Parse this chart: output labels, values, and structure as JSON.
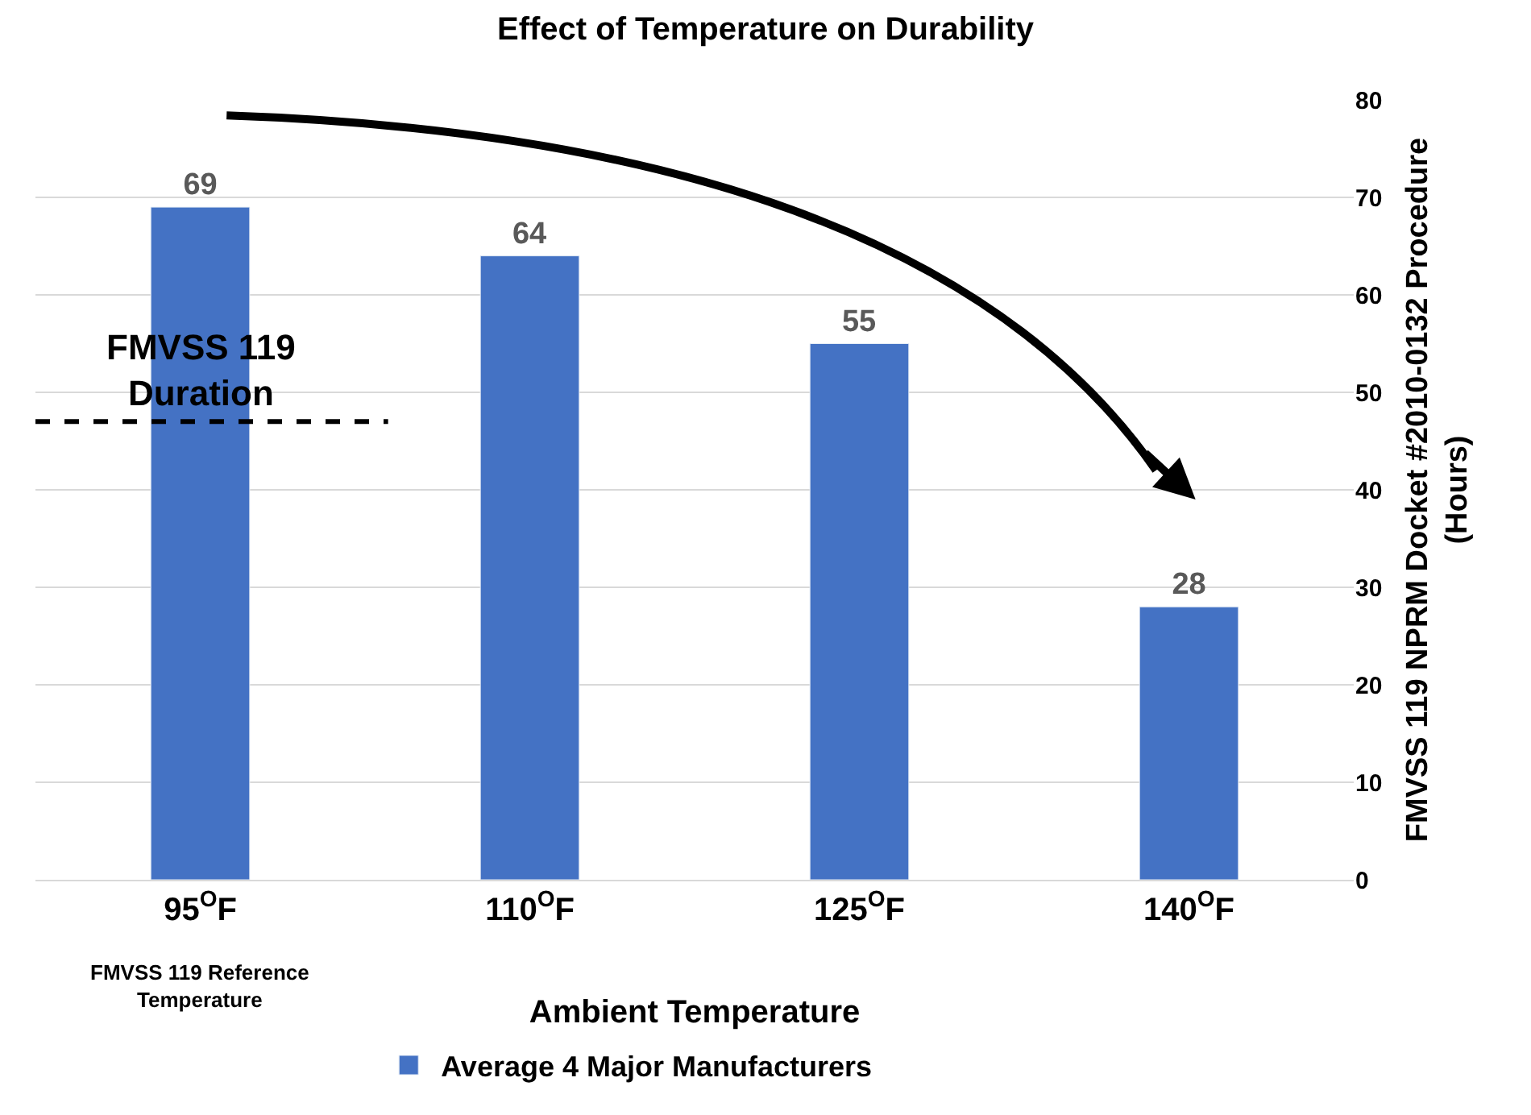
{
  "chart_data": {
    "type": "bar",
    "title": "Effect of Temperature on Durability",
    "categories": [
      "95$^{O}$F",
      "110$^{O}$F",
      "125$^{O}$F",
      "140$^{O}$F"
    ],
    "xlabel": "Ambient Temperature",
    "ylabel": "FMVSS 119 NPRM Docket #2010-0132 Procedure\n(Hours)",
    "series": [
      {
        "name": "Average 4 Major Manufacturers",
        "color": "#4472c4",
        "values": [
          69,
          64,
          55,
          28
        ]
      }
    ],
    "data_labels": true,
    "ylim": [
      0,
      80
    ],
    "yticks": [
      0,
      10,
      20,
      30,
      40,
      50,
      60,
      70,
      80
    ],
    "grid": "y",
    "legend": "bottom",
    "ref_lines": [
      {
        "axis": "y",
        "value": 47,
        "label": "FMVSS 119\nDuration",
        "color": "#000000",
        "line_style": "dashed"
      }
    ],
    "annotations": [
      "FMVSS 119 Reference\nTemperature"
    ]
  }
}
